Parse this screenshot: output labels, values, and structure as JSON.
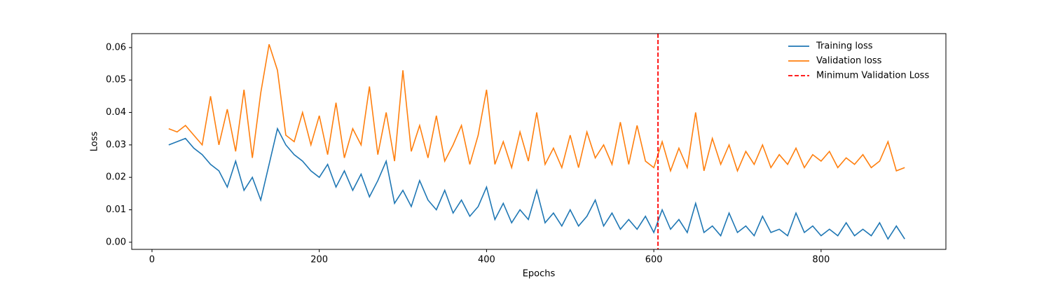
{
  "chart_data": {
    "type": "line",
    "xlabel": "Epochs",
    "ylabel": "Loss",
    "x": [
      20,
      30,
      40,
      50,
      60,
      70,
      80,
      90,
      100,
      110,
      120,
      130,
      140,
      150,
      160,
      170,
      180,
      190,
      200,
      210,
      220,
      230,
      240,
      250,
      260,
      270,
      280,
      290,
      300,
      310,
      320,
      330,
      340,
      350,
      360,
      370,
      380,
      390,
      400,
      410,
      420,
      430,
      440,
      450,
      460,
      470,
      480,
      490,
      500,
      510,
      520,
      530,
      540,
      550,
      560,
      570,
      580,
      590,
      600,
      610,
      620,
      630,
      640,
      650,
      660,
      670,
      680,
      690,
      700,
      710,
      720,
      730,
      740,
      750,
      760,
      770,
      780,
      790,
      800,
      810,
      820,
      830,
      840,
      850,
      860,
      870,
      880,
      890,
      900
    ],
    "series": [
      {
        "name": "Training loss",
        "color": "#1f77b4",
        "values": [
          0.03,
          0.031,
          0.032,
          0.029,
          0.027,
          0.024,
          0.022,
          0.017,
          0.025,
          0.016,
          0.02,
          0.013,
          0.024,
          0.035,
          0.03,
          0.027,
          0.025,
          0.022,
          0.02,
          0.024,
          0.017,
          0.022,
          0.016,
          0.021,
          0.014,
          0.019,
          0.025,
          0.012,
          0.016,
          0.011,
          0.019,
          0.013,
          0.01,
          0.016,
          0.009,
          0.013,
          0.008,
          0.011,
          0.017,
          0.007,
          0.012,
          0.006,
          0.01,
          0.007,
          0.016,
          0.006,
          0.009,
          0.005,
          0.01,
          0.005,
          0.008,
          0.013,
          0.005,
          0.009,
          0.004,
          0.007,
          0.004,
          0.008,
          0.003,
          0.01,
          0.004,
          0.007,
          0.003,
          0.012,
          0.003,
          0.005,
          0.002,
          0.009,
          0.003,
          0.005,
          0.002,
          0.008,
          0.003,
          0.004,
          0.002,
          0.009,
          0.003,
          0.005,
          0.002,
          0.004,
          0.002,
          0.006,
          0.002,
          0.004,
          0.002,
          0.006,
          0.001,
          0.005,
          0.001
        ]
      },
      {
        "name": "Validation loss",
        "color": "#ff7f0e",
        "values": [
          0.035,
          0.034,
          0.036,
          0.033,
          0.03,
          0.045,
          0.03,
          0.041,
          0.028,
          0.047,
          0.026,
          0.046,
          0.061,
          0.053,
          0.033,
          0.031,
          0.04,
          0.03,
          0.039,
          0.027,
          0.043,
          0.026,
          0.035,
          0.03,
          0.048,
          0.027,
          0.04,
          0.025,
          0.053,
          0.028,
          0.036,
          0.026,
          0.039,
          0.025,
          0.03,
          0.036,
          0.024,
          0.033,
          0.047,
          0.024,
          0.031,
          0.023,
          0.034,
          0.025,
          0.04,
          0.024,
          0.029,
          0.023,
          0.033,
          0.023,
          0.034,
          0.026,
          0.03,
          0.024,
          0.037,
          0.024,
          0.036,
          0.025,
          0.023,
          0.031,
          0.022,
          0.029,
          0.023,
          0.04,
          0.022,
          0.032,
          0.024,
          0.03,
          0.022,
          0.028,
          0.024,
          0.03,
          0.023,
          0.027,
          0.024,
          0.029,
          0.023,
          0.027,
          0.025,
          0.028,
          0.023,
          0.026,
          0.024,
          0.027,
          0.023,
          0.025,
          0.031,
          0.022,
          0.023
        ]
      }
    ],
    "vlines": [
      {
        "name": "Minimum Validation Loss",
        "x": 605,
        "color": "red",
        "dashed": true
      }
    ],
    "xlim": [
      -24.25,
      949.25
    ],
    "xticks": [
      0,
      200,
      400,
      600,
      800
    ],
    "ylim": [
      -0.0022,
      0.0643
    ],
    "yticks": [
      {
        "value": 0,
        "label": "0.00"
      },
      0.01,
      0.02,
      0.03,
      0.04,
      0.05,
      0.06
    ],
    "grid": false,
    "legend": "upper right"
  }
}
